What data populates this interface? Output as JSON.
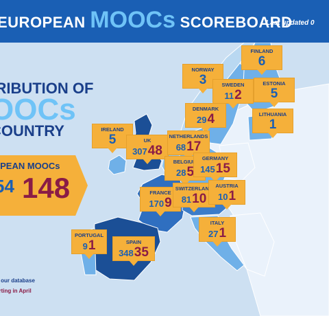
{
  "header": {
    "title_pre": "EUROPEAN ",
    "title_big": "MOOCs",
    "title_post": " SCOREBOARD",
    "updated": "Last updated 0"
  },
  "heading": {
    "line1": "TRIBUTION OF",
    "line2": "OOCs",
    "line3": "COUNTRY"
  },
  "total": {
    "label": "OPEAN MOOCs",
    "old": "54",
    "new": "148"
  },
  "countries": [
    {
      "name": "FINLAND",
      "single": "6"
    },
    {
      "name": "NORWAY",
      "single": "3"
    },
    {
      "name": "SWEDEN",
      "a": "11",
      "b": "2"
    },
    {
      "name": "ESTONIA",
      "single": "5"
    },
    {
      "name": "DENMARK",
      "a": "29",
      "b": "4"
    },
    {
      "name": "LITHUANIA",
      "single": "1"
    },
    {
      "name": "IRELAND",
      "single": "5"
    },
    {
      "name": "UK",
      "a": "307",
      "b": "48"
    },
    {
      "name": "NETHERLANDS",
      "a": "68",
      "b": "17"
    },
    {
      "name": "BELGIUM",
      "a": "28",
      "b": "5"
    },
    {
      "name": "GERMANY",
      "a": "145",
      "b": "15"
    },
    {
      "name": "FRANCE",
      "a": "170",
      "b": "9"
    },
    {
      "name": "SWITZERLAND",
      "a": "81",
      "b": "10"
    },
    {
      "name": "AUSTRIA",
      "a": "10",
      "b": "1"
    },
    {
      "name": "PORTUGAL",
      "a": "9",
      "b": "1"
    },
    {
      "name": "SPAIN",
      "a": "348",
      "b": "35"
    },
    {
      "name": "ITALY",
      "a": "27",
      "b": "1"
    }
  ],
  "footer": {
    "line1": "n our database",
    "line2": "arting in April"
  }
}
